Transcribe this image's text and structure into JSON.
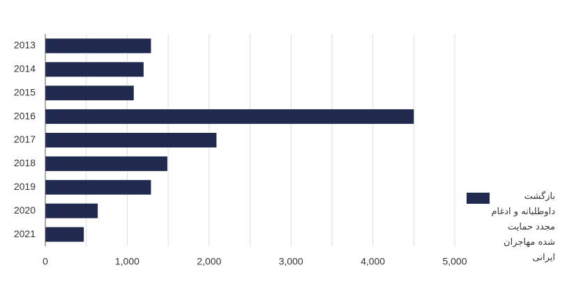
{
  "chart_data": {
    "type": "hbar",
    "categories": [
      "2013",
      "2014",
      "2015",
      "2016",
      "2017",
      "2018",
      "2019",
      "2020",
      "2021"
    ],
    "series": [
      {
        "name": "بازگشت داوطلبانه و ادغام مجدد حمایت شده مهاجران ایرانی",
        "color": "#1f2a4e",
        "values": [
          1290,
          1200,
          1080,
          4500,
          2090,
          1490,
          1290,
          640,
          470
        ]
      }
    ],
    "xlim": [
      0,
      5000
    ],
    "xticks": [
      0,
      {
        "value": 1000,
        "label": "1,000"
      },
      {
        "value": 2000,
        "label": "2,000"
      },
      {
        "value": 3000,
        "label": "3,000"
      },
      {
        "value": 4000,
        "label": "4,000"
      },
      {
        "value": 5000,
        "label": "5,000"
      }
    ],
    "minor_gridlines": [
      500,
      1500,
      2500,
      3500,
      4500
    ],
    "grid": true,
    "legend": "right"
  }
}
